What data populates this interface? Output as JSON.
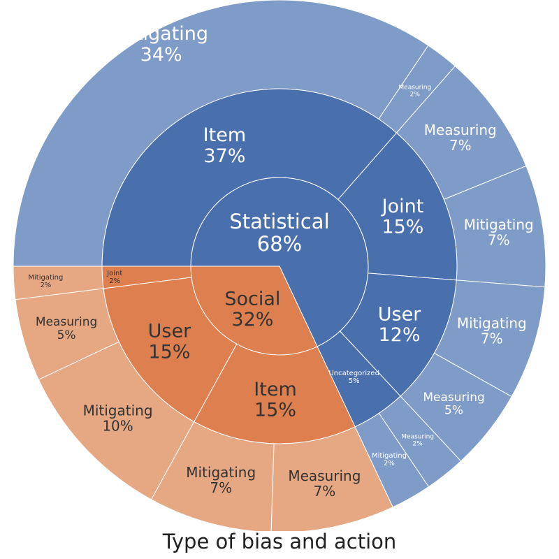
{
  "chart_data": {
    "type": "sunburst",
    "title": "Type of bias and action",
    "colors": {
      "statistical": "#4a6fad",
      "statistical_outer": "#7f9cc8",
      "social": "#dd7f4f",
      "social_outer": "#e6a783",
      "line": "#ffffff",
      "text_light": "#ffffff",
      "text_dark": "#333333"
    },
    "nodes": [
      {
        "id": "statistical",
        "label": "Statistical",
        "pct": "68%",
        "value": 68,
        "level": 1,
        "group": "statistical"
      },
      {
        "id": "social",
        "label": "Social",
        "pct": "32%",
        "value": 32,
        "level": 1,
        "group": "social"
      },
      {
        "id": "stat-item",
        "parent": "statistical",
        "label": "Item",
        "pct": "37%",
        "value": 37,
        "level": 2,
        "group": "statistical"
      },
      {
        "id": "stat-joint",
        "parent": "statistical",
        "label": "Joint",
        "pct": "15%",
        "value": 15,
        "level": 2,
        "group": "statistical"
      },
      {
        "id": "stat-user",
        "parent": "statistical",
        "label": "User",
        "pct": "12%",
        "value": 12,
        "level": 2,
        "group": "statistical"
      },
      {
        "id": "stat-uncat",
        "parent": "statistical",
        "label": "Uncategorized",
        "pct": "5%",
        "value": 5,
        "level": 2,
        "group": "statistical"
      },
      {
        "id": "soc-item",
        "parent": "social",
        "label": "Item",
        "pct": "15%",
        "value": 15,
        "level": 2,
        "group": "social"
      },
      {
        "id": "soc-user",
        "parent": "social",
        "label": "User",
        "pct": "15%",
        "value": 15,
        "level": 2,
        "group": "social"
      },
      {
        "id": "soc-joint",
        "parent": "social",
        "label": "Joint",
        "pct": "2%",
        "value": 2,
        "level": 2,
        "group": "social"
      },
      {
        "id": "stat-item-mit",
        "parent": "stat-item",
        "label": "Mitigating",
        "pct": "34%",
        "value": 34,
        "level": 3,
        "group": "statistical"
      },
      {
        "id": "stat-item-meas",
        "parent": "stat-item",
        "label": "Measuring",
        "pct": "2%",
        "value": 2,
        "level": 3,
        "group": "statistical"
      },
      {
        "id": "stat-joint-meas",
        "parent": "stat-joint",
        "label": "Measuring",
        "pct": "7%",
        "value": 7,
        "level": 3,
        "group": "statistical"
      },
      {
        "id": "stat-joint-mit",
        "parent": "stat-joint",
        "label": "Mitigating",
        "pct": "7%",
        "value": 7,
        "level": 3,
        "group": "statistical"
      },
      {
        "id": "stat-user-mit",
        "parent": "stat-user",
        "label": "Mitigating",
        "pct": "7%",
        "value": 7,
        "level": 3,
        "group": "statistical"
      },
      {
        "id": "stat-user-meas",
        "parent": "stat-user",
        "label": "Measuring",
        "pct": "5%",
        "value": 5,
        "level": 3,
        "group": "statistical"
      },
      {
        "id": "stat-uncat-meas",
        "parent": "stat-uncat",
        "label": "Measuring",
        "pct": "2%",
        "value": 2,
        "level": 3,
        "group": "statistical"
      },
      {
        "id": "stat-uncat-mit",
        "parent": "stat-uncat",
        "label": "Mitigating",
        "pct": "2%",
        "value": 2,
        "level": 3,
        "group": "statistical"
      },
      {
        "id": "soc-item-meas",
        "parent": "soc-item",
        "label": "Measuring",
        "pct": "7%",
        "value": 7,
        "level": 3,
        "group": "social"
      },
      {
        "id": "soc-item-mit",
        "parent": "soc-item",
        "label": "Mitigating",
        "pct": "7%",
        "value": 7,
        "level": 3,
        "group": "social"
      },
      {
        "id": "soc-user-mit",
        "parent": "soc-user",
        "label": "Mitigating",
        "pct": "10%",
        "value": 10,
        "level": 3,
        "group": "social"
      },
      {
        "id": "soc-user-meas",
        "parent": "soc-user",
        "label": "Measuring",
        "pct": "5%",
        "value": 5,
        "level": 3,
        "group": "social"
      },
      {
        "id": "soc-joint-mit",
        "parent": "soc-joint",
        "label": "Mitigating",
        "pct": "2%",
        "value": 2,
        "level": 3,
        "group": "social"
      }
    ]
  }
}
